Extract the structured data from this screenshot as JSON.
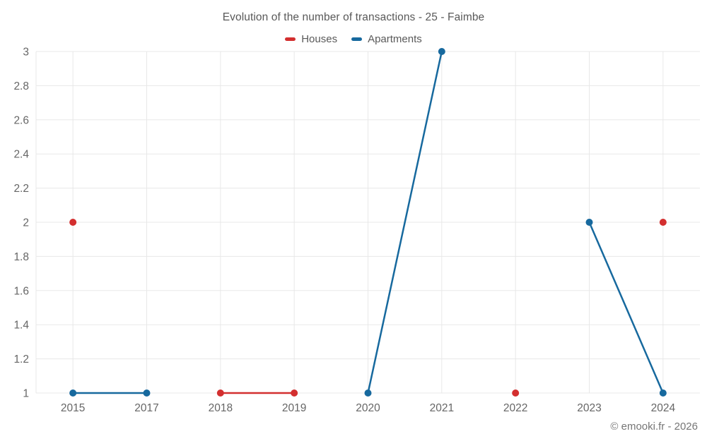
{
  "header": {
    "title": "Evolution of the number of transactions - 25 - Faimbe"
  },
  "legend": {
    "items": [
      {
        "label": "Houses",
        "color": "#d32f2f"
      },
      {
        "label": "Apartments",
        "color": "#17699e"
      }
    ]
  },
  "footer": {
    "copyright": "© emooki.fr - 2026"
  },
  "chart_data": {
    "type": "line",
    "title": "Evolution of the number of transactions - 25 - Faimbe",
    "categories": [
      "2015",
      "2017",
      "2018",
      "2019",
      "2020",
      "2021",
      "2022",
      "2023",
      "2024"
    ],
    "series": [
      {
        "name": "Houses",
        "color": "#d32f2f",
        "values": [
          2,
          null,
          1,
          1,
          null,
          null,
          1,
          null,
          2
        ]
      },
      {
        "name": "Apartments",
        "color": "#17699e",
        "values": [
          1,
          1,
          null,
          null,
          1,
          3,
          null,
          2,
          1
        ]
      }
    ],
    "xlabel": "",
    "ylabel": "",
    "ylim": [
      1,
      3
    ],
    "yticks": [
      1,
      1.2,
      1.4,
      1.6,
      1.8,
      2,
      2.2,
      2.4,
      2.6,
      2.8,
      3
    ],
    "grid": true,
    "legend_position": "top",
    "marker_radius": 5,
    "line_width": 2.5,
    "grid_color": "#e8e8e8",
    "tick_label_color": "#666666"
  }
}
